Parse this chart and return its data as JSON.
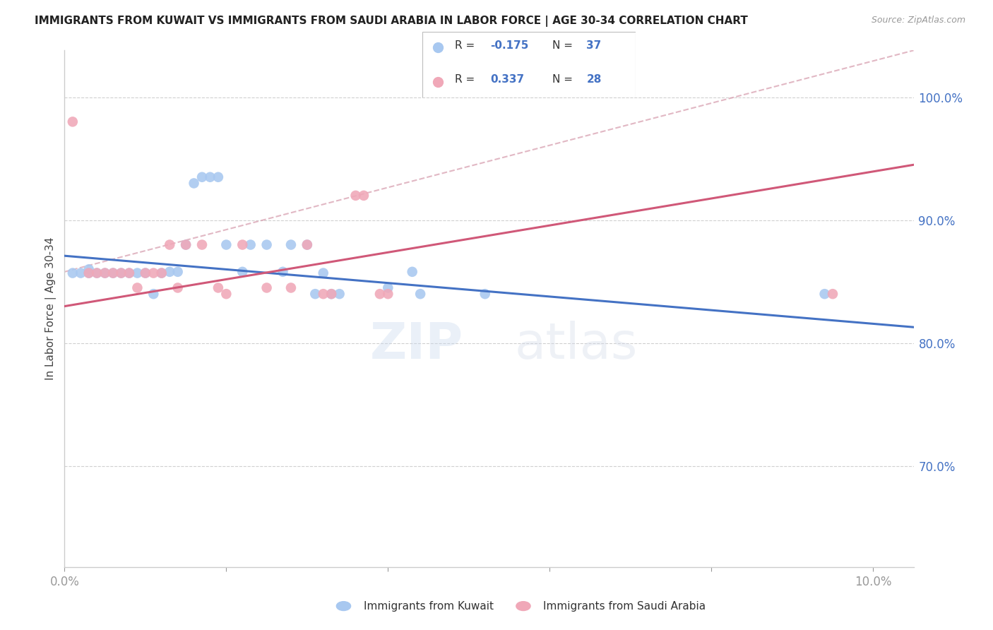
{
  "title": "IMMIGRANTS FROM KUWAIT VS IMMIGRANTS FROM SAUDI ARABIA IN LABOR FORCE | AGE 30-34 CORRELATION CHART",
  "source": "Source: ZipAtlas.com",
  "ylabel": "In Labor Force | Age 30-34",
  "xlim": [
    0.0,
    0.105
  ],
  "ylim": [
    0.82,
    1.035
  ],
  "yticks": [
    0.7,
    0.8,
    0.9,
    1.0
  ],
  "ytick_labels": [
    "70.0%",
    "80.0%",
    "90.0%",
    "100.0%"
  ],
  "xticks": [
    0.0,
    0.02,
    0.04,
    0.06,
    0.08,
    0.1
  ],
  "xtick_labels": [
    "0.0%",
    "",
    "",
    "",
    "",
    "10.0%"
  ],
  "kuwait_color": "#a8c8f0",
  "saudi_color": "#f0a8b8",
  "kuwait_line_color": "#4472c4",
  "saudi_line_color": "#d05878",
  "dash_line_color": "#d8a0b0",
  "kuwait_x": [
    0.001,
    0.002,
    0.003,
    0.003,
    0.004,
    0.005,
    0.006,
    0.007,
    0.008,
    0.009,
    0.01,
    0.011,
    0.012,
    0.013,
    0.014,
    0.015,
    0.016,
    0.017,
    0.018,
    0.019,
    0.02,
    0.022,
    0.023,
    0.025,
    0.027,
    0.028,
    0.03,
    0.031,
    0.032,
    0.033,
    0.034,
    0.04,
    0.043,
    0.044,
    0.052,
    0.094
  ],
  "kuwait_y": [
    0.857,
    0.857,
    0.86,
    0.857,
    0.857,
    0.857,
    0.857,
    0.857,
    0.857,
    0.857,
    0.857,
    0.84,
    0.857,
    0.858,
    0.858,
    0.88,
    0.93,
    0.935,
    0.935,
    0.935,
    0.88,
    0.858,
    0.88,
    0.88,
    0.858,
    0.88,
    0.88,
    0.84,
    0.857,
    0.84,
    0.84,
    0.845,
    0.858,
    0.84,
    0.84,
    0.84
  ],
  "saudi_x": [
    0.001,
    0.003,
    0.004,
    0.005,
    0.006,
    0.007,
    0.008,
    0.009,
    0.01,
    0.011,
    0.012,
    0.013,
    0.014,
    0.015,
    0.017,
    0.019,
    0.02,
    0.022,
    0.025,
    0.028,
    0.03,
    0.032,
    0.033,
    0.036,
    0.037,
    0.039,
    0.04,
    0.095
  ],
  "saudi_y": [
    0.98,
    0.857,
    0.857,
    0.857,
    0.857,
    0.857,
    0.857,
    0.845,
    0.857,
    0.857,
    0.857,
    0.88,
    0.845,
    0.88,
    0.88,
    0.845,
    0.84,
    0.88,
    0.845,
    0.845,
    0.88,
    0.84,
    0.84,
    0.92,
    0.92,
    0.84,
    0.84,
    0.84
  ],
  "watermark_zip": "ZIP",
  "watermark_atlas": "atlas",
  "background_color": "#ffffff",
  "grid_color": "#d0d0d0"
}
